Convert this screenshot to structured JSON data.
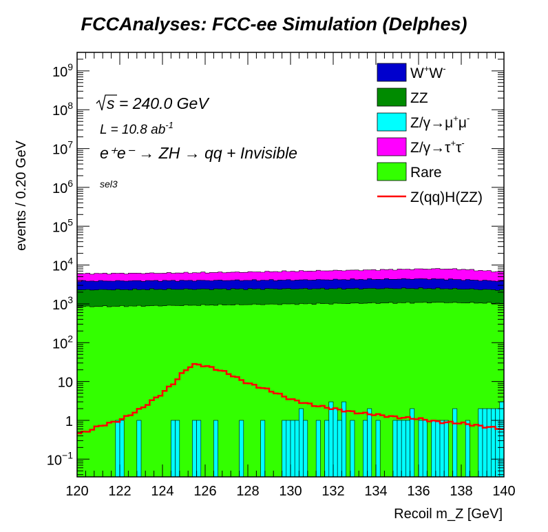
{
  "chart_data": {
    "type": "area",
    "title": "FCCAnalyses: FCC-ee Simulation (Delphes)",
    "xlabel": "Recoil m_Z [GeV]",
    "ylabel": "events / 0.20 GeV",
    "xlim": [
      120,
      140
    ],
    "ylim": [
      0.035,
      3000000000
    ],
    "yscale": "log",
    "x_ticks": [
      "120",
      "122",
      "124",
      "126",
      "128",
      "130",
      "132",
      "134",
      "136",
      "138",
      "140"
    ],
    "y_ticks": [
      {
        "value": 0.1,
        "base": "10",
        "exp": "−1"
      },
      {
        "value": 1,
        "base": "1",
        "exp": ""
      },
      {
        "value": 10,
        "base": "10",
        "exp": ""
      },
      {
        "value": 100,
        "base": "10",
        "exp": "2"
      },
      {
        "value": 1000,
        "base": "10",
        "exp": "3"
      },
      {
        "value": 10000,
        "base": "10",
        "exp": "4"
      },
      {
        "value": 100000,
        "base": "10",
        "exp": "5"
      },
      {
        "value": 1000000,
        "base": "10",
        "exp": "6"
      },
      {
        "value": 10000000,
        "base": "10",
        "exp": "7"
      },
      {
        "value": 100000000,
        "base": "10",
        "exp": "8"
      },
      {
        "value": 1000000000,
        "base": "10",
        "exp": "9"
      }
    ],
    "annotations": {
      "sqrt_s": {
        "root": "s",
        "text": " = 240.0 GeV"
      },
      "lumi": {
        "text": "L = 10.8 ab",
        "sup": "-1"
      },
      "process": "e⁺e⁻ → ZH → qq + Invisible",
      "selection": "sel3"
    },
    "x_knots": [
      120,
      122,
      124,
      126,
      128,
      130,
      132,
      134,
      136,
      137,
      138,
      140
    ],
    "stack": [
      {
        "name": "Rare",
        "label": "Rare",
        "color": "#33ff00",
        "totals": [
          850,
          870,
          900,
          930,
          960,
          990,
          1020,
          1050,
          1080,
          1090,
          1070,
          1040
        ]
      },
      {
        "name": "ZZ",
        "label": "ZZ",
        "color": "#008b00",
        "totals": [
          2300,
          2330,
          2380,
          2400,
          2420,
          2440,
          2460,
          2480,
          2500,
          2480,
          2420,
          2280
        ]
      },
      {
        "name": "WW",
        "label": "W⁺W⁻",
        "color": "#0000cd",
        "totals": [
          3850,
          3900,
          3950,
          4000,
          4050,
          4100,
          4200,
          4300,
          4400,
          4350,
          4200,
          3800
        ]
      },
      {
        "name": "tautau",
        "label": "Z/γ→τ⁺τ⁻",
        "color": "#ff00ff",
        "totals": [
          6000,
          6100,
          6200,
          6400,
          6600,
          6900,
          7200,
          7500,
          7900,
          8000,
          7800,
          6600
        ]
      }
    ],
    "mumu": {
      "label": "Z/γ→μ⁺μ⁻",
      "color": "#00ffff",
      "bin_width": 0.2,
      "bins": [
        {
          "x": 121.8,
          "value": 1
        },
        {
          "x": 122.0,
          "value": 1
        },
        {
          "x": 122.8,
          "value": 1
        },
        {
          "x": 124.4,
          "value": 1
        },
        {
          "x": 124.6,
          "value": 1
        },
        {
          "x": 125.4,
          "value": 1
        },
        {
          "x": 125.6,
          "value": 1
        },
        {
          "x": 126.4,
          "value": 1
        },
        {
          "x": 127.6,
          "value": 1
        },
        {
          "x": 128.6,
          "value": 1
        },
        {
          "x": 129.6,
          "value": 1
        },
        {
          "x": 129.8,
          "value": 1
        },
        {
          "x": 130.0,
          "value": 1
        },
        {
          "x": 130.2,
          "value": 1
        },
        {
          "x": 130.4,
          "value": 2
        },
        {
          "x": 130.6,
          "value": 1
        },
        {
          "x": 131.2,
          "value": 1
        },
        {
          "x": 131.6,
          "value": 1
        },
        {
          "x": 131.8,
          "value": 3
        },
        {
          "x": 132.0,
          "value": 2
        },
        {
          "x": 132.2,
          "value": 1
        },
        {
          "x": 132.4,
          "value": 3
        },
        {
          "x": 132.8,
          "value": 1
        },
        {
          "x": 133.4,
          "value": 1
        },
        {
          "x": 133.6,
          "value": 2
        },
        {
          "x": 134.0,
          "value": 1
        },
        {
          "x": 134.8,
          "value": 1
        },
        {
          "x": 135.0,
          "value": 1
        },
        {
          "x": 135.2,
          "value": 1
        },
        {
          "x": 135.4,
          "value": 1
        },
        {
          "x": 135.6,
          "value": 2
        },
        {
          "x": 136.0,
          "value": 1
        },
        {
          "x": 136.2,
          "value": 1
        },
        {
          "x": 136.6,
          "value": 1
        },
        {
          "x": 136.8,
          "value": 1
        },
        {
          "x": 137.0,
          "value": 1
        },
        {
          "x": 137.2,
          "value": 1
        },
        {
          "x": 137.6,
          "value": 2
        },
        {
          "x": 138.2,
          "value": 1
        },
        {
          "x": 138.8,
          "value": 2
        },
        {
          "x": 139.0,
          "value": 2
        },
        {
          "x": 139.2,
          "value": 2
        },
        {
          "x": 139.4,
          "value": 2
        },
        {
          "x": 139.6,
          "value": 2
        },
        {
          "x": 139.8,
          "value": 3
        }
      ]
    },
    "signal": {
      "label": "Z(qq)H(ZZ)",
      "color": "#ff0000",
      "x_knots": [
        120,
        120.4,
        121,
        122,
        123,
        124,
        124.6,
        125,
        125.4,
        125.8,
        126.4,
        127,
        128,
        129,
        130,
        131,
        132,
        133,
        134,
        135,
        136,
        137,
        138,
        139,
        140
      ],
      "values": [
        0.45,
        0.5,
        0.7,
        1.0,
        2.0,
        5.0,
        10,
        18,
        27,
        27,
        22,
        17,
        9,
        6,
        3.5,
        2.5,
        2.0,
        1.6,
        1.4,
        1.2,
        1.1,
        0.9,
        0.85,
        0.7,
        0.6
      ]
    },
    "legend": {
      "position": "top-right",
      "entries": [
        {
          "label": "W⁺W⁻",
          "base": "W",
          "sup1": "+",
          "mid": "W",
          "sup2": "-",
          "color": "#0000cd",
          "kind": "box"
        },
        {
          "label": "ZZ",
          "base": "ZZ",
          "sup1": "",
          "mid": "",
          "sup2": "",
          "color": "#008b00",
          "kind": "box"
        },
        {
          "label": "Z/γ→μ⁺μ⁻",
          "base": "Z/γ→μ",
          "sup1": "+",
          "mid": "μ",
          "sup2": "-",
          "color": "#00ffff",
          "kind": "box"
        },
        {
          "label": "Z/γ→τ⁺τ⁻",
          "base": "Z/γ→τ",
          "sup1": "+",
          "mid": "τ",
          "sup2": "-",
          "color": "#ff00ff",
          "kind": "box"
        },
        {
          "label": "Rare",
          "base": "Rare",
          "sup1": "",
          "mid": "",
          "sup2": "",
          "color": "#33ff00",
          "kind": "box"
        },
        {
          "label": "Z(qq)H(ZZ)",
          "base": "Z(qq)H(ZZ)",
          "sup1": "",
          "mid": "",
          "sup2": "",
          "color": "#ff0000",
          "kind": "line"
        }
      ]
    },
    "grid": false
  }
}
